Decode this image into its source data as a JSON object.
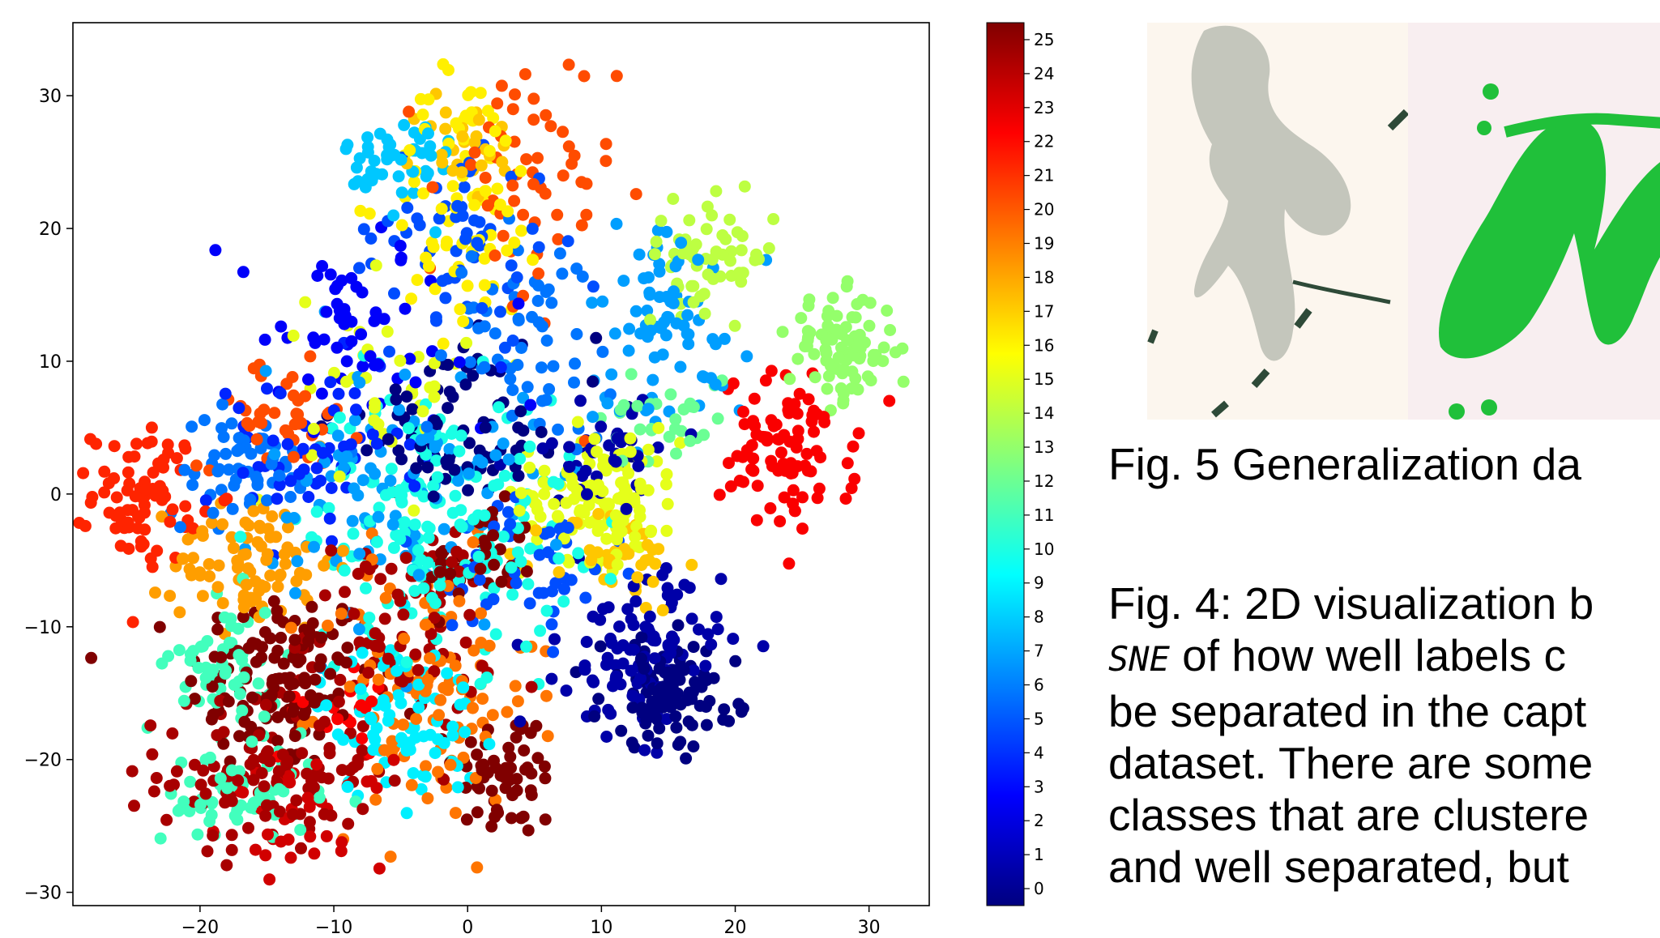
{
  "chart_data": {
    "type": "scatter",
    "title": "",
    "xlabel": "",
    "ylabel": "",
    "xlim": [
      -29.5,
      34.5
    ],
    "ylim": [
      -31,
      35.5
    ],
    "xticks": [
      -20,
      -10,
      0,
      10,
      20,
      30
    ],
    "yticks": [
      -30,
      -20,
      -10,
      0,
      10,
      20,
      30
    ],
    "xtick_labels": [
      "−20",
      "−10",
      "0",
      "10",
      "20",
      "30"
    ],
    "ytick_labels": [
      "−30",
      "−20",
      "−10",
      "0",
      "10",
      "20",
      "30"
    ],
    "grid": false,
    "colormap": "jet",
    "colorbar": {
      "min": 0,
      "max": 25,
      "tick_labels": [
        "0",
        "1",
        "2",
        "3",
        "4",
        "5",
        "6",
        "7",
        "8",
        "9",
        "10",
        "11",
        "12",
        "13",
        "14",
        "15",
        "16",
        "17",
        "18",
        "19",
        "20",
        "21",
        "22",
        "23",
        "24",
        "25"
      ]
    },
    "clusters": [
      {
        "label": 25,
        "center": [
          -14,
          -14
        ],
        "spread": [
          3.5,
          3.5
        ],
        "count": 130
      },
      {
        "label": 25,
        "center": [
          3,
          -21
        ],
        "spread": [
          2,
          2.5
        ],
        "count": 60
      },
      {
        "label": 25,
        "center": [
          1,
          -5
        ],
        "spread": [
          2,
          2
        ],
        "count": 40
      },
      {
        "label": 24,
        "center": [
          -15,
          -21
        ],
        "spread": [
          4,
          3
        ],
        "count": 110
      },
      {
        "label": 24,
        "center": [
          -5,
          -10
        ],
        "spread": [
          3.5,
          4
        ],
        "count": 90
      },
      {
        "label": 23,
        "center": [
          -12,
          -24
        ],
        "spread": [
          3,
          2
        ],
        "count": 40
      },
      {
        "label": 22,
        "center": [
          24,
          3
        ],
        "spread": [
          2.5,
          3
        ],
        "count": 90
      },
      {
        "label": 22,
        "center": [
          -10,
          -16
        ],
        "spread": [
          2,
          2
        ],
        "count": 20
      },
      {
        "label": 21,
        "center": [
          -24,
          0
        ],
        "spread": [
          2,
          2.5
        ],
        "count": 80
      },
      {
        "label": 20,
        "center": [
          4,
          22
        ],
        "spread": [
          3.5,
          6
        ],
        "count": 60
      },
      {
        "label": 20,
        "center": [
          -14,
          6
        ],
        "spread": [
          3,
          2
        ],
        "count": 40
      },
      {
        "label": 19,
        "center": [
          -3,
          -15
        ],
        "spread": [
          4,
          5
        ],
        "count": 110
      },
      {
        "label": 18,
        "center": [
          -16,
          -5
        ],
        "spread": [
          3,
          2.5
        ],
        "count": 90
      },
      {
        "label": 17,
        "center": [
          11,
          -5
        ],
        "spread": [
          2.5,
          2
        ],
        "count": 40
      },
      {
        "label": 17,
        "center": [
          0,
          26
        ],
        "spread": [
          2,
          2
        ],
        "count": 30
      },
      {
        "label": 16,
        "center": [
          0,
          22
        ],
        "spread": [
          3,
          5
        ],
        "count": 80
      },
      {
        "label": 15,
        "center": [
          10,
          0
        ],
        "spread": [
          3,
          2.5
        ],
        "count": 130
      },
      {
        "label": 15,
        "center": [
          -6,
          8
        ],
        "spread": [
          3,
          4
        ],
        "count": 40
      },
      {
        "label": 14,
        "center": [
          18,
          18
        ],
        "spread": [
          2.5,
          2
        ],
        "count": 60
      },
      {
        "label": 13,
        "center": [
          28,
          11
        ],
        "spread": [
          2,
          2
        ],
        "count": 90
      },
      {
        "label": 12,
        "center": [
          15,
          6
        ],
        "spread": [
          2.5,
          2
        ],
        "count": 30
      },
      {
        "label": 11,
        "center": [
          -18,
          -13
        ],
        "spread": [
          2,
          2.5
        ],
        "count": 60
      },
      {
        "label": 11,
        "center": [
          -17,
          -23
        ],
        "spread": [
          3,
          2
        ],
        "count": 60
      },
      {
        "label": 10,
        "center": [
          -2,
          -2
        ],
        "spread": [
          5,
          5
        ],
        "count": 180
      },
      {
        "label": 9,
        "center": [
          -5,
          -17
        ],
        "spread": [
          3,
          3
        ],
        "count": 80
      },
      {
        "label": 8,
        "center": [
          -5,
          25
        ],
        "spread": [
          2,
          2
        ],
        "count": 50
      },
      {
        "label": 7,
        "center": [
          -5,
          0
        ],
        "spread": [
          5,
          5
        ],
        "count": 110
      },
      {
        "label": 7,
        "center": [
          15,
          13
        ],
        "spread": [
          3,
          4
        ],
        "count": 80
      },
      {
        "label": 6,
        "center": [
          -17,
          2
        ],
        "spread": [
          3,
          2
        ],
        "count": 60
      },
      {
        "label": 6,
        "center": [
          5,
          12
        ],
        "spread": [
          3,
          4
        ],
        "count": 60
      },
      {
        "label": 5,
        "center": [
          -1,
          19
        ],
        "spread": [
          4,
          4
        ],
        "count": 60
      },
      {
        "label": 5,
        "center": [
          5,
          -5
        ],
        "spread": [
          3,
          3
        ],
        "count": 50
      },
      {
        "label": 4,
        "center": [
          -12,
          3
        ],
        "spread": [
          4,
          3
        ],
        "count": 60
      },
      {
        "label": 3,
        "center": [
          -8,
          12
        ],
        "spread": [
          5,
          4
        ],
        "count": 60
      },
      {
        "label": 1,
        "center": [
          13,
          -12
        ],
        "spread": [
          3,
          3
        ],
        "count": 100
      },
      {
        "label": 1,
        "center": [
          10,
          3
        ],
        "spread": [
          3,
          2
        ],
        "count": 40
      },
      {
        "label": 0,
        "center": [
          15,
          -15
        ],
        "spread": [
          2.5,
          2
        ],
        "count": 110
      },
      {
        "label": 0,
        "center": [
          0,
          5
        ],
        "spread": [
          5,
          3
        ],
        "count": 80
      }
    ]
  },
  "captions": {
    "fig5": "Fig. 5 Generalization da",
    "fig4_line1": "Fig. 4: 2D visualization b",
    "fig4_line2_mono": "SNE",
    "fig4_line2_rest": " of  how well labels c",
    "fig4_line3": "be separated in the capt",
    "fig4_line4": "dataset. There are some",
    "fig4_line5": "classes that are clustere",
    "fig4_line6": "and well separated, but"
  },
  "colors": {
    "glyph_left_stroke": "#c4c6bc",
    "glyph_left_dark": "#2e4a38",
    "glyph_right_stroke": "#20c03a"
  }
}
